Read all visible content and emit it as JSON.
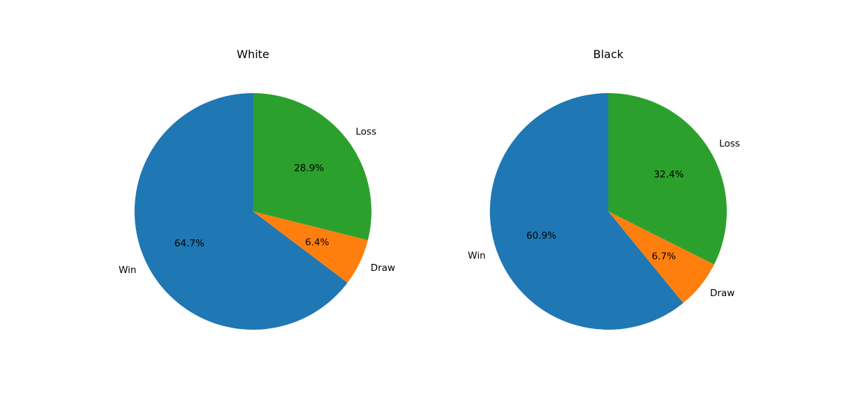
{
  "chart_data": [
    {
      "type": "pie",
      "title": "White",
      "labels": [
        "Win",
        "Draw",
        "Loss"
      ],
      "values": [
        64.7,
        6.4,
        28.9
      ],
      "value_labels": [
        "64.7%",
        "6.4%",
        "28.9%"
      ],
      "colors": [
        "#1f77b4",
        "#ff7f0e",
        "#2ca02c"
      ],
      "start_angle_deg": 90,
      "direction": "counterclockwise"
    },
    {
      "type": "pie",
      "title": "Black",
      "labels": [
        "Win",
        "Draw",
        "Loss"
      ],
      "values": [
        60.9,
        6.7,
        32.4
      ],
      "value_labels": [
        "60.9%",
        "6.7%",
        "32.4%"
      ],
      "colors": [
        "#1f77b4",
        "#ff7f0e",
        "#2ca02c"
      ],
      "start_angle_deg": 90,
      "direction": "counterclockwise"
    }
  ]
}
